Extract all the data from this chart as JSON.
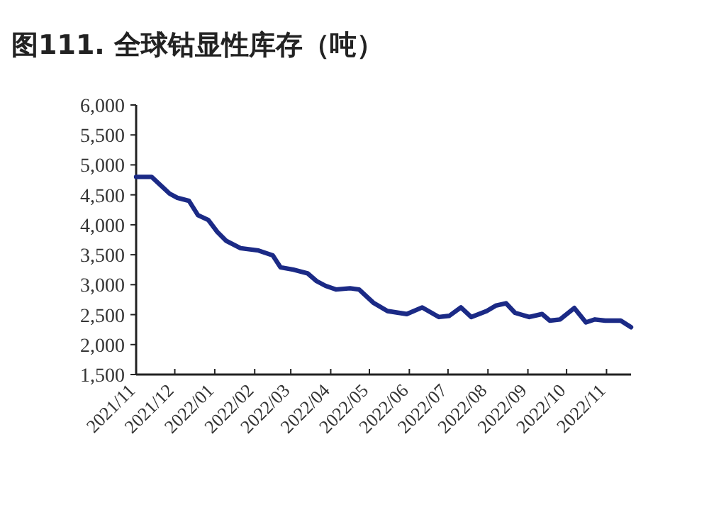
{
  "chart_data": {
    "type": "line",
    "title": "图111. 全球钴显性库存（吨）",
    "x": [
      "2021-11-01",
      "2021-11-13",
      "2021-11-27",
      "2021-12-03",
      "2021-12-12",
      "2021-12-19",
      "2021-12-27",
      "2022-01-03",
      "2022-01-10",
      "2022-01-21",
      "2022-02-04",
      "2022-02-15",
      "2022-02-21",
      "2022-03-03",
      "2022-03-14",
      "2022-03-21",
      "2022-03-28",
      "2022-04-05",
      "2022-04-16",
      "2022-04-23",
      "2022-05-04",
      "2022-05-15",
      "2022-05-30",
      "2022-06-11",
      "2022-06-24",
      "2022-07-02",
      "2022-07-11",
      "2022-07-19",
      "2022-07-31",
      "2022-08-07",
      "2022-08-15",
      "2022-08-22",
      "2022-09-02",
      "2022-09-12",
      "2022-09-18",
      "2022-09-26",
      "2022-10-07",
      "2022-10-16",
      "2022-10-23",
      "2022-10-31",
      "2022-11-12",
      "2022-11-20"
    ],
    "series": [
      {
        "color": "#1b2a86",
        "values": [
          4800,
          4800,
          4520,
          4450,
          4400,
          4160,
          4080,
          3880,
          3730,
          3610,
          3570,
          3490,
          3290,
          3250,
          3190,
          3060,
          2980,
          2920,
          2940,
          2920,
          2700,
          2560,
          2510,
          2620,
          2460,
          2480,
          2620,
          2460,
          2560,
          2650,
          2690,
          2530,
          2460,
          2510,
          2400,
          2420,
          2610,
          2370,
          2420,
          2400,
          2400,
          2290
        ]
      }
    ],
    "xlim": [
      "2021-11-01",
      "2022-11-20"
    ],
    "xticks": [
      {
        "value": "2021-11",
        "label": "2021/11"
      },
      {
        "value": "2021-12",
        "label": "2021/12"
      },
      {
        "value": "2022-01",
        "label": "2022/01"
      },
      {
        "value": "2022-02",
        "label": "2022/02"
      },
      {
        "value": "2022-03",
        "label": "2022/03"
      },
      {
        "value": "2022-04",
        "label": "2022/04"
      },
      {
        "value": "2022-05",
        "label": "2022/05"
      },
      {
        "value": "2022-06",
        "label": "2022/06"
      },
      {
        "value": "2022-07",
        "label": "2022/07"
      },
      {
        "value": "2022-08",
        "label": "2022/08"
      },
      {
        "value": "2022-09",
        "label": "2022/09"
      },
      {
        "value": "2022-10",
        "label": "2022/10"
      },
      {
        "value": "2022-11",
        "label": "2022/11"
      }
    ],
    "ylim": [
      1500,
      6000
    ],
    "yticks": [
      {
        "value": 1500,
        "label": "1,500"
      },
      {
        "value": 2000,
        "label": "2,000"
      },
      {
        "value": 2500,
        "label": "2,500"
      },
      {
        "value": 3000,
        "label": "3,000"
      },
      {
        "value": 3500,
        "label": "3,500"
      },
      {
        "value": 4000,
        "label": "4,000"
      },
      {
        "value": 4500,
        "label": "4,500"
      },
      {
        "value": 5000,
        "label": "5,000"
      },
      {
        "value": 5500,
        "label": "5,500"
      },
      {
        "value": 6000,
        "label": "6,000"
      }
    ],
    "grid": false,
    "marker": "none",
    "line_style": "solid"
  }
}
